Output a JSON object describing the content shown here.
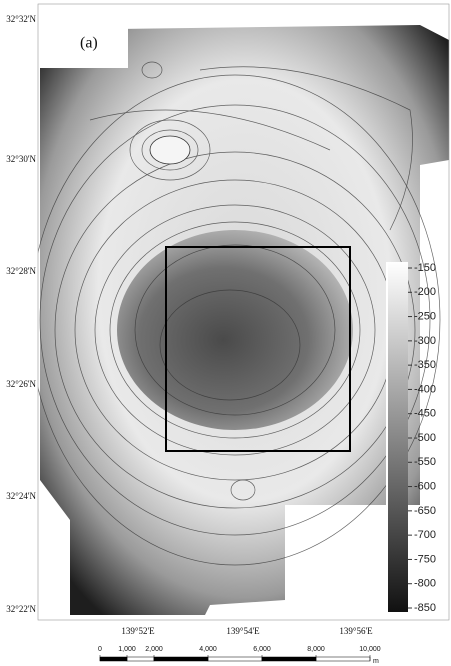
{
  "panel_label": "(a)",
  "latitude_labels": [
    "32°32'N",
    "32°30'N",
    "32°28'N",
    "32°26'N",
    "32°24'N",
    "32°22'N"
  ],
  "longitude_labels": [
    "139°52'E",
    "139°54'E",
    "139°56'E"
  ],
  "colorbar": {
    "ticks": [
      -150,
      -200,
      -250,
      -300,
      -350,
      -400,
      -450,
      -500,
      -550,
      -600,
      -650,
      -700,
      -750,
      -800,
      -850
    ]
  },
  "scale_bar": {
    "ticks": [
      0,
      {
        "value": 1000,
        "label": "1,000"
      },
      {
        "value": 2000,
        "label": "2,000"
      },
      {
        "value": 4000,
        "label": "4,000"
      },
      {
        "value": 6000,
        "label": "6,000"
      },
      {
        "value": 8000,
        "label": "8,000"
      },
      {
        "value": 10000,
        "label": "10,000"
      }
    ],
    "unit": "m"
  }
}
